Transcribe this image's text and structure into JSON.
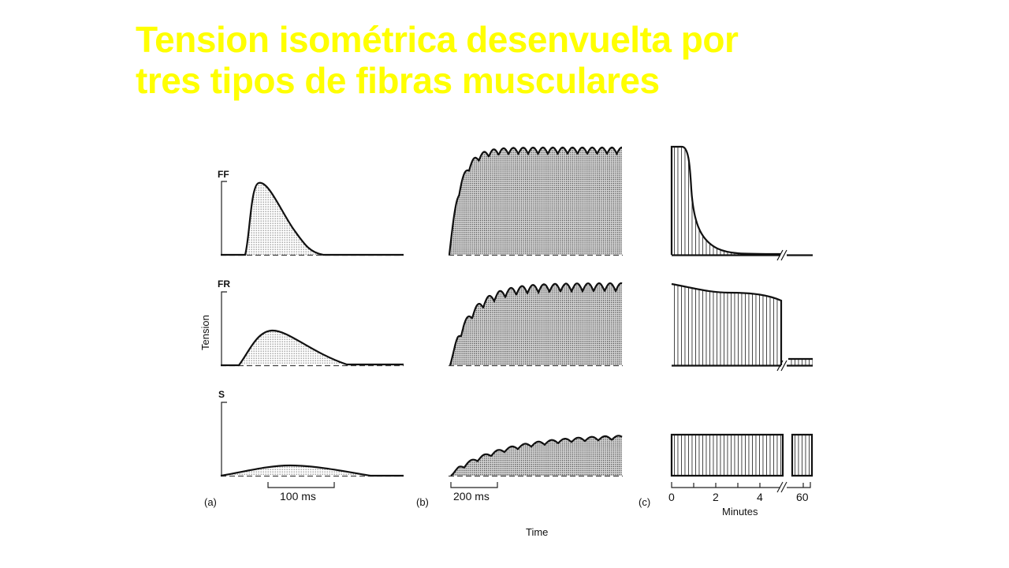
{
  "slide": {
    "title_line1": "Tension isométrica desenvuelta por",
    "title_line2": "tres tipos de fibras musculares",
    "title_color": "#ffff00"
  },
  "figure": {
    "fiber_types": [
      "FF",
      "FR",
      "S"
    ],
    "y_axis_label": "Tension",
    "x_axis_label": "Time",
    "panels": [
      {
        "label": "(a)",
        "scale_bar": "100 ms"
      },
      {
        "label": "(b)",
        "scale_bar": "200 ms"
      },
      {
        "label": "(c)",
        "axis_ticks": [
          "0",
          "2",
          "4",
          "60"
        ],
        "axis_label": "Minutes"
      }
    ]
  }
}
